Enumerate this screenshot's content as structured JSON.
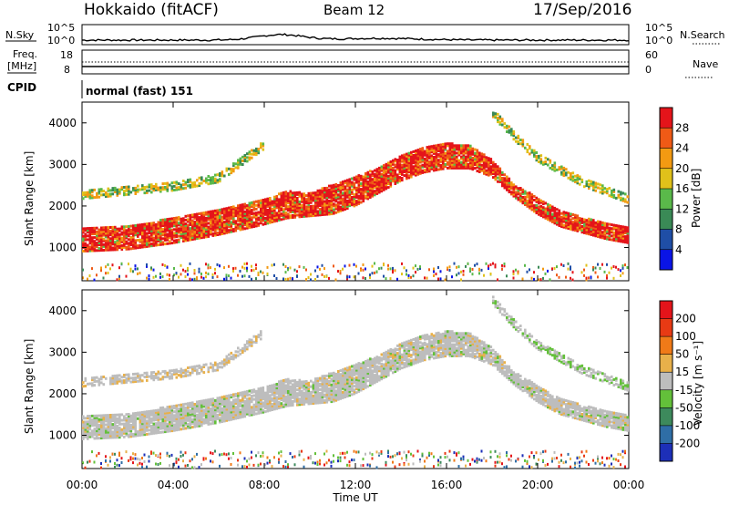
{
  "header": {
    "station": "Hokkaido (fitACF)",
    "beam": "Beam 12",
    "date": "17/Sep/2016"
  },
  "noise_panel": {
    "left_label": "N.Sky",
    "right_label": "N.Search",
    "tick_top": "10^5",
    "tick_bottom": "10^0"
  },
  "freq_panel": {
    "left_label_1": "Freq.",
    "left_label_2": "[MHz]",
    "left_ticks": [
      "18",
      "8"
    ],
    "right_label": "Nave",
    "right_ticks": [
      "60",
      "0"
    ]
  },
  "cpid": {
    "label": "CPID",
    "value": "normal (fast) 151"
  },
  "power_panel": {
    "ylabel": "Slant Range [km]",
    "yticks": [
      "4000",
      "3000",
      "2000",
      "1000"
    ],
    "colorbar_label": "Power [dB]",
    "colorbar_ticks": [
      "28",
      "24",
      "20",
      "16",
      "12",
      "8",
      "4"
    ],
    "colors": [
      "#0a14e6",
      "#1f4ea6",
      "#3a8a56",
      "#5ab94a",
      "#e0c11a",
      "#f39a12",
      "#ef5a16",
      "#e4141a"
    ]
  },
  "velocity_panel": {
    "ylabel": "Slant Range [km]",
    "yticks": [
      "4000",
      "3000",
      "2000",
      "1000"
    ],
    "colorbar_label": "Velocity [m s⁻¹]",
    "colorbar_ticks": [
      "200",
      "100",
      "50",
      "15",
      "-15",
      "-50",
      "-100",
      "-200"
    ],
    "colors": [
      "#1d2fb8",
      "#2f6ea6",
      "#3d8a5c",
      "#63c03a",
      "#bdbdbd",
      "#e8b04a",
      "#f07a18",
      "#e83a14",
      "#e4141a"
    ]
  },
  "xaxis": {
    "label": "Time UT",
    "ticks": [
      "00:00",
      "04:00",
      "08:00",
      "12:00",
      "16:00",
      "20:00",
      "00:00"
    ]
  },
  "chart_data": {
    "type": "heatmap",
    "x_range_hours": [
      0,
      24
    ],
    "y_range_km": [
      200,
      4500
    ],
    "main_echo_band": {
      "time_hours": [
        0,
        2,
        4,
        6,
        8,
        9,
        10,
        11,
        12,
        13,
        14,
        15,
        16,
        17,
        18,
        19,
        20,
        21,
        22,
        23,
        24
      ],
      "lower_km": [
        900,
        950,
        1100,
        1300,
        1550,
        1700,
        1750,
        1800,
        2000,
        2300,
        2600,
        2800,
        2900,
        2900,
        2700,
        2200,
        1800,
        1500,
        1350,
        1200,
        1100
      ],
      "upper_km": [
        1450,
        1500,
        1700,
        1900,
        2150,
        2350,
        2300,
        2500,
        2700,
        2900,
        3200,
        3400,
        3500,
        3450,
        3100,
        2500,
        2200,
        1900,
        1700,
        1600,
        1500
      ]
    },
    "upper_echo_band": {
      "time_hours": [
        0,
        2,
        4,
        6,
        7,
        8
      ],
      "center_km": [
        2300,
        2400,
        2500,
        2700,
        3100,
        3500
      ]
    },
    "late_echo_band": {
      "time_hours": [
        18,
        19,
        20,
        21,
        22,
        23,
        24
      ],
      "center_km": [
        4300,
        3700,
        3200,
        2900,
        2600,
        2400,
        2200
      ]
    }
  }
}
